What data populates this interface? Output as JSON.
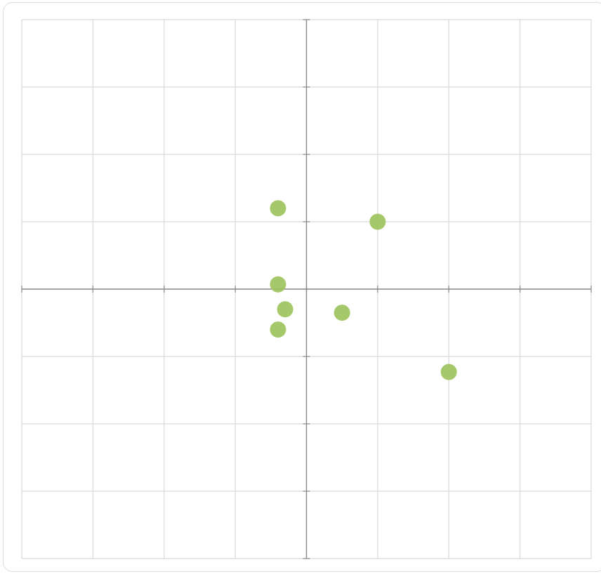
{
  "chart_data": {
    "type": "scatter",
    "title": "",
    "xlabel": "",
    "ylabel": "",
    "xlim": [
      -4,
      4
    ],
    "ylim": [
      -4,
      4
    ],
    "grid": true,
    "x_ticks": [
      -3,
      -2,
      -1,
      0,
      1,
      2,
      3
    ],
    "y_ticks": [
      -3,
      -2,
      -1,
      0,
      1,
      2,
      3
    ],
    "series": [
      {
        "points": [
          {
            "x": -0.4,
            "y": 1.2
          },
          {
            "x": 1.0,
            "y": 1.0
          },
          {
            "x": -0.4,
            "y": 0.07
          },
          {
            "x": -0.3,
            "y": -0.3
          },
          {
            "x": -0.4,
            "y": -0.6
          },
          {
            "x": 0.5,
            "y": -0.35
          },
          {
            "x": 2.0,
            "y": -1.23
          }
        ]
      }
    ]
  },
  "colors": {
    "point": "#9dc35d",
    "grid": "#d9d9d9",
    "axis": "#8a8a8a",
    "card_border": "#dcdcdc"
  }
}
